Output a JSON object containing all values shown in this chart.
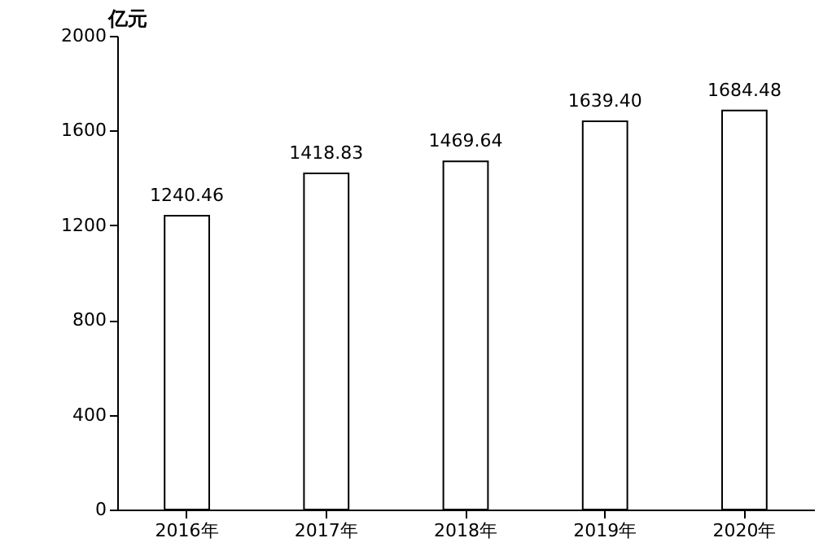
{
  "chart_data": {
    "type": "bar",
    "ylabel": "亿元",
    "categories": [
      "2016年",
      "2017年",
      "2018年",
      "2019年",
      "2020年"
    ],
    "values": [
      1240.46,
      1418.83,
      1469.64,
      1639.4,
      1684.48
    ],
    "value_labels": [
      "1240.46",
      "1418.83",
      "1469.64",
      "1639.40",
      "1684.48"
    ],
    "color": "#ffffff",
    "ylim": [
      0,
      2000
    ],
    "yticks": [
      0,
      400,
      800,
      1200,
      1600,
      2000
    ],
    "grid": false
  }
}
